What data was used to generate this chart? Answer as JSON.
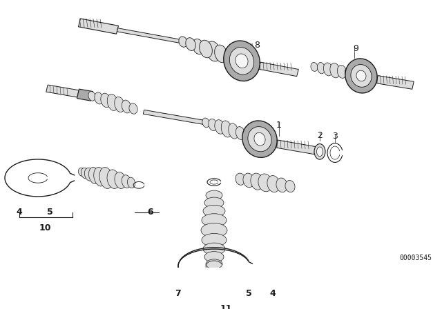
{
  "bg_color": "#ffffff",
  "diagram_id": "00003545",
  "dark": "#1a1a1a",
  "gray": "#888888",
  "fill_dark": "#aaaaaa",
  "fill_light": "#dddddd",
  "fill_white": "#f5f5f5"
}
